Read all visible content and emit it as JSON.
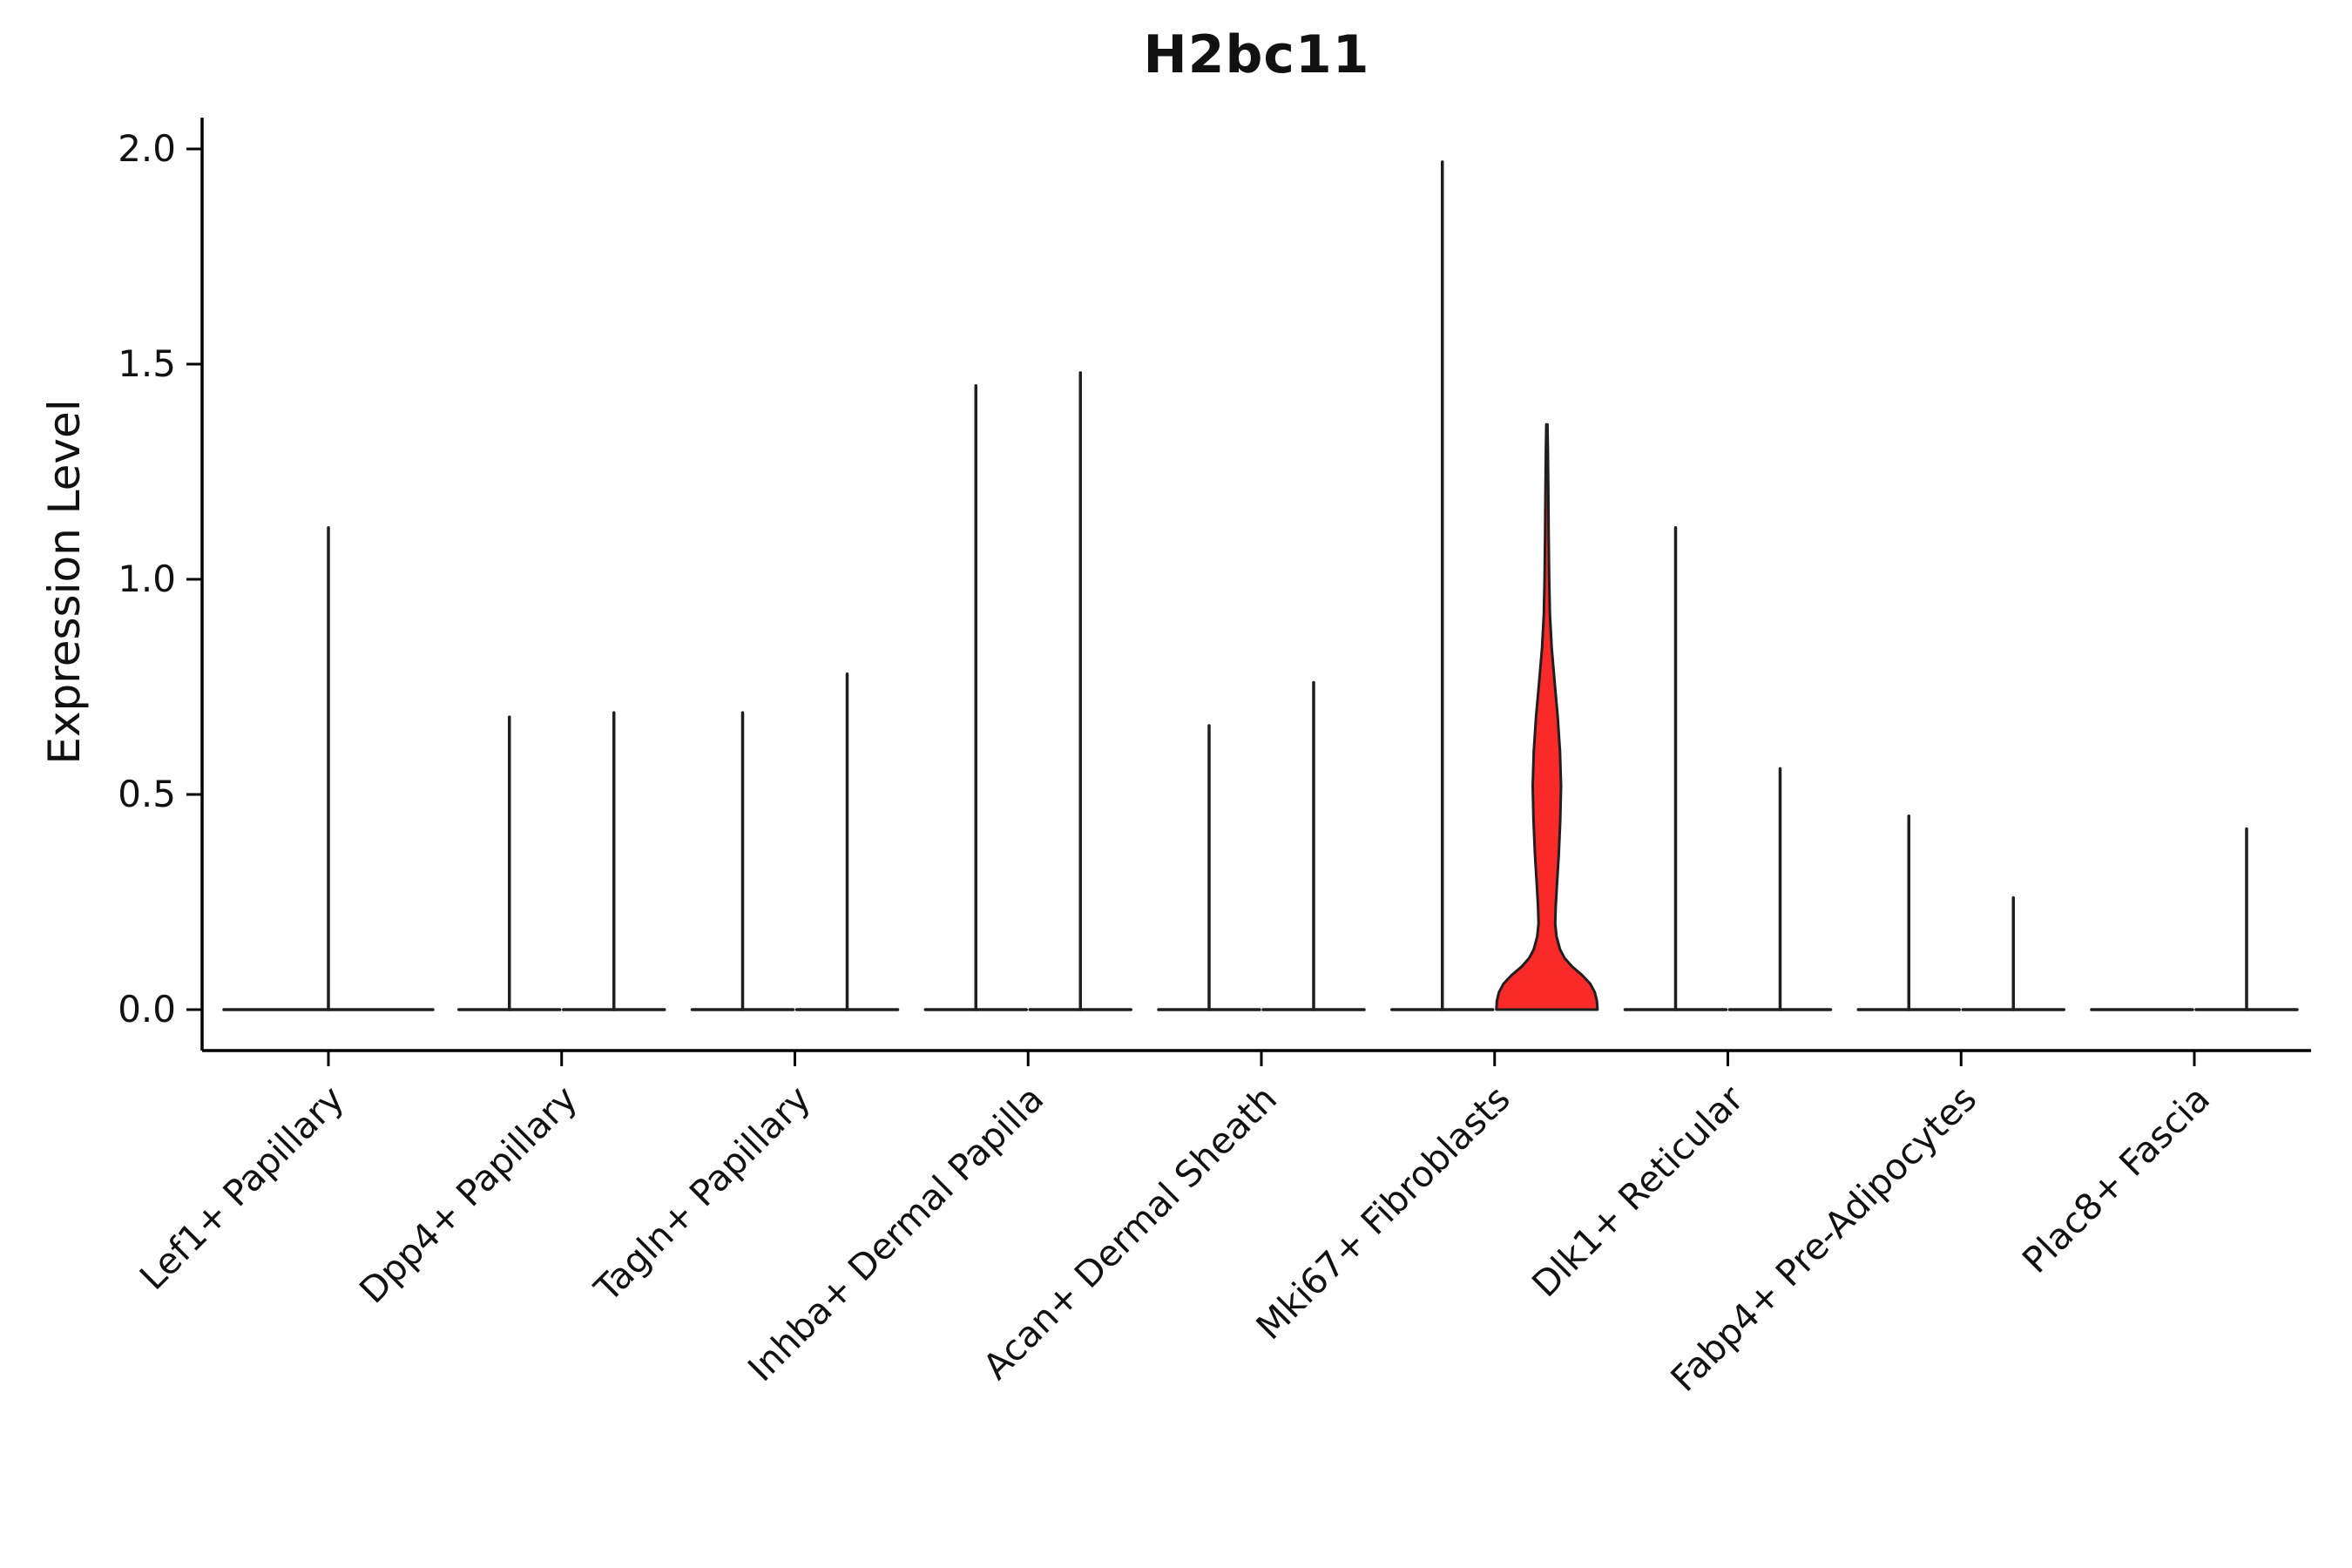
{
  "figure": {
    "title": "H2bc11",
    "ylabel": "Expression Level"
  },
  "chart_data": {
    "type": "violin",
    "title": "H2bc11",
    "xlabel": "",
    "ylabel": "Expression Level",
    "ylim": [
      0,
      2.05
    ],
    "grid": false,
    "legend": null,
    "yticks": [
      {
        "value": 0.0,
        "label": "0.0"
      },
      {
        "value": 0.5,
        "label": "0.5"
      },
      {
        "value": 1.0,
        "label": "1.0"
      },
      {
        "value": 1.5,
        "label": "1.5"
      },
      {
        "value": 2.0,
        "label": "2.0"
      }
    ],
    "categories": [
      "Lef1+ Papillary",
      "Dpp4+ Papillary",
      "Tagln+ Papillary",
      "Inhba+ Dermal Papilla",
      "Acan+ Dermal Sheath",
      "Mki67+ Fibroblasts",
      "Dlk1+ Reticular",
      "Fabp4+ Pre-Adipocytes",
      "Plac8+ Fascia"
    ],
    "groups": [
      {
        "category": "Lef1+ Papillary",
        "violins": [
          {
            "max": 1.12,
            "span": "full",
            "fill": "none"
          }
        ]
      },
      {
        "category": "Dpp4+ Papillary",
        "violins": [
          {
            "max": 0.68,
            "fill": "none"
          },
          {
            "max": 0.69,
            "fill": "none"
          }
        ]
      },
      {
        "category": "Tagln+ Papillary",
        "violins": [
          {
            "max": 0.69,
            "fill": "none"
          },
          {
            "max": 0.78,
            "fill": "none"
          }
        ]
      },
      {
        "category": "Inhba+ Dermal Papilla",
        "violins": [
          {
            "max": 1.45,
            "fill": "none"
          },
          {
            "max": 1.48,
            "fill": "none"
          }
        ]
      },
      {
        "category": "Acan+ Dermal Sheath",
        "violins": [
          {
            "max": 0.66,
            "fill": "none"
          },
          {
            "max": 0.76,
            "fill": "none"
          }
        ]
      },
      {
        "category": "Mki67+ Fibroblasts",
        "violins": [
          {
            "max": 1.97,
            "fill": "none"
          },
          {
            "max": 1.36,
            "fill": "#fb2a2a",
            "shape": "density",
            "profile": [
              [
                0.0,
                1.0
              ],
              [
                0.02,
                0.99
              ],
              [
                0.04,
                0.95
              ],
              [
                0.06,
                0.86
              ],
              [
                0.08,
                0.7
              ],
              [
                0.1,
                0.5
              ],
              [
                0.12,
                0.35
              ],
              [
                0.14,
                0.26
              ],
              [
                0.17,
                0.19
              ],
              [
                0.2,
                0.165
              ],
              [
                0.24,
                0.175
              ],
              [
                0.3,
                0.205
              ],
              [
                0.36,
                0.235
              ],
              [
                0.44,
                0.265
              ],
              [
                0.52,
                0.28
              ],
              [
                0.6,
                0.26
              ],
              [
                0.68,
                0.215
              ],
              [
                0.76,
                0.155
              ],
              [
                0.84,
                0.095
              ],
              [
                0.92,
                0.06
              ],
              [
                1.0,
                0.045
              ],
              [
                1.1,
                0.035
              ],
              [
                1.2,
                0.028
              ],
              [
                1.3,
                0.02
              ],
              [
                1.36,
                0.012
              ]
            ]
          }
        ]
      },
      {
        "category": "Dlk1+ Reticular",
        "violins": [
          {
            "max": 1.12,
            "fill": "none"
          },
          {
            "max": 0.56,
            "fill": "none"
          }
        ]
      },
      {
        "category": "Fabp4+ Pre-Adipocytes",
        "violins": [
          {
            "max": 0.45,
            "fill": "none"
          },
          {
            "max": 0.26,
            "fill": "none"
          }
        ]
      },
      {
        "category": "Plac8+ Fascia",
        "violins": [
          {
            "max": 0.0,
            "fill": "none"
          },
          {
            "max": 0.42,
            "fill": "none"
          }
        ]
      }
    ],
    "style": {
      "stroke": "#1f1f1f",
      "axis_color": "#000000",
      "highlight_fill": "#fb2a2a",
      "background": "#ffffff"
    }
  }
}
